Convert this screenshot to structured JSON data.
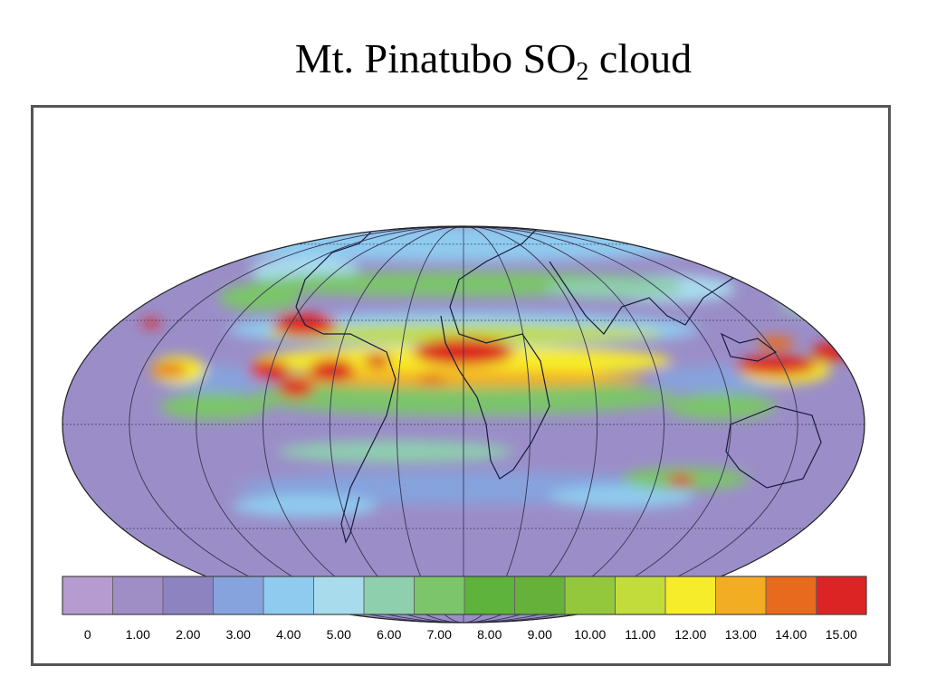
{
  "slide": {
    "title_main": "Mt. Pinatubo SO",
    "title_sub": "2",
    "title_end": " cloud"
  },
  "map": {
    "projection": "Mollweide world map",
    "colorbar": {
      "ticks": [
        "0",
        "1.00",
        "2.00",
        "3.00",
        "4.00",
        "5.00",
        "6.00",
        "7.00",
        "8.00",
        "9.00",
        "10.00",
        "11.00",
        "12.00",
        "13.00",
        "14.00",
        "15.00"
      ],
      "colors": [
        "#b59bcf",
        "#9f8dc6",
        "#8c83c0",
        "#86a3dd",
        "#8fcbef",
        "#a8dced",
        "#8ecfae",
        "#7cc56a",
        "#5db33c",
        "#66b13a",
        "#94c83c",
        "#c2dc3c",
        "#f7ec2a",
        "#f3ad22",
        "#e86a1e",
        "#dd2424"
      ]
    }
  }
}
